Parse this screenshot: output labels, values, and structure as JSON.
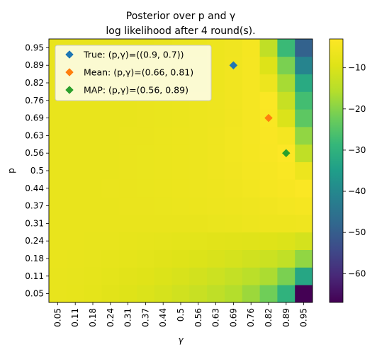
{
  "chart_data": {
    "type": "heatmap",
    "title": "Posterior over p and γ",
    "subtitle": "log likelihood after 4 round(s).",
    "xlabel": "γ",
    "ylabel": "p",
    "x_ticks": [
      "0.05",
      "0.11",
      "0.18",
      "0.24",
      "0.31",
      "0.37",
      "0.44",
      "0.5",
      "0.56",
      "0.63",
      "0.69",
      "0.76",
      "0.82",
      "0.89",
      "0.95"
    ],
    "y_ticks": [
      "0.05",
      "0.11",
      "0.18",
      "0.24",
      "0.31",
      "0.37",
      "0.44",
      "0.5",
      "0.56",
      "0.63",
      "0.69",
      "0.76",
      "0.82",
      "0.89",
      "0.95"
    ],
    "colorbar": {
      "min": -67,
      "max": -3,
      "ticks": [
        -10,
        -20,
        -30,
        -40,
        -50,
        -60
      ],
      "tick_labels": [
        "−10",
        "−20",
        "−30",
        "−40",
        "−50",
        "−60"
      ],
      "colormap": "viridis"
    },
    "z": [
      [
        -7.5,
        -7.8,
        -8.2,
        -8.8,
        -9.3,
        -10.0,
        -10.8,
        -11.7,
        -12.8,
        -14.1,
        -15.8,
        -18.0,
        -22.0,
        -30.0,
        -67.0
      ],
      [
        -7.4,
        -7.6,
        -7.9,
        -8.3,
        -8.7,
        -9.2,
        -9.8,
        -10.5,
        -11.4,
        -12.3,
        -13.4,
        -14.8,
        -16.5,
        -21.0,
        -33.0
      ],
      [
        -7.3,
        -7.4,
        -7.6,
        -7.9,
        -8.2,
        -8.5,
        -8.9,
        -9.3,
        -9.8,
        -10.3,
        -10.9,
        -11.6,
        -12.4,
        -13.8,
        -19.0
      ],
      [
        -7.2,
        -7.3,
        -7.4,
        -7.5,
        -7.7,
        -7.9,
        -8.1,
        -8.3,
        -8.5,
        -8.7,
        -8.9,
        -9.1,
        -9.4,
        -9.8,
        -11.0
      ],
      [
        -7.2,
        -7.2,
        -7.2,
        -7.3,
        -7.3,
        -7.3,
        -7.3,
        -7.3,
        -7.2,
        -7.0,
        -6.8,
        -6.5,
        -6.3,
        -6.3,
        -6.0
      ],
      [
        -7.2,
        -7.2,
        -7.2,
        -7.2,
        -7.1,
        -7.1,
        -7.0,
        -6.9,
        -6.7,
        -6.5,
        -6.2,
        -5.9,
        -5.5,
        -5.2,
        -4.8
      ],
      [
        -7.2,
        -7.2,
        -7.2,
        -7.1,
        -7.1,
        -7.0,
        -6.9,
        -6.7,
        -6.5,
        -6.2,
        -5.8,
        -5.3,
        -4.8,
        -4.3,
        -3.7
      ],
      [
        -7.2,
        -7.2,
        -7.2,
        -7.2,
        -7.1,
        -7.0,
        -6.9,
        -6.7,
        -6.4,
        -6.0,
        -5.5,
        -5.0,
        -4.4,
        -3.8,
        -6.5
      ],
      [
        -7.2,
        -7.2,
        -7.2,
        -7.2,
        -7.1,
        -7.0,
        -6.9,
        -6.7,
        -6.4,
        -6.0,
        -5.4,
        -4.8,
        -4.1,
        -3.2,
        -14.0
      ],
      [
        -7.2,
        -7.2,
        -7.2,
        -7.2,
        -7.1,
        -7.1,
        -6.9,
        -6.7,
        -6.4,
        -6.0,
        -5.4,
        -4.7,
        -3.9,
        -5.0,
        -19.0
      ],
      [
        -7.2,
        -7.2,
        -7.2,
        -7.2,
        -7.2,
        -7.1,
        -7.0,
        -6.8,
        -6.5,
        -6.1,
        -5.5,
        -4.7,
        -3.8,
        -10.0,
        -24.0
      ],
      [
        -7.2,
        -7.2,
        -7.2,
        -7.2,
        -7.2,
        -7.1,
        -7.0,
        -6.8,
        -6.5,
        -6.1,
        -5.5,
        -4.7,
        -3.7,
        -13.0,
        -27.0
      ],
      [
        -7.2,
        -7.2,
        -7.2,
        -7.2,
        -7.2,
        -7.1,
        -7.0,
        -6.8,
        -6.6,
        -6.2,
        -5.6,
        -4.7,
        -6.5,
        -17.0,
        -32.0
      ],
      [
        -7.2,
        -7.2,
        -7.2,
        -7.2,
        -7.2,
        -7.2,
        -7.1,
        -6.9,
        -6.6,
        -6.2,
        -5.6,
        -4.7,
        -9.5,
        -21.0,
        -41.0
      ],
      [
        -7.2,
        -7.2,
        -7.2,
        -7.2,
        -7.2,
        -7.2,
        -7.1,
        -6.9,
        -6.7,
        -6.3,
        -5.7,
        -4.8,
        -14.0,
        -28.0,
        -49.0
      ]
    ],
    "markers": [
      {
        "name": "True",
        "label": "True: (p,γ)=((0.9, 0.7))",
        "gamma": 0.69,
        "p": 0.89,
        "color": "#1f77b4"
      },
      {
        "name": "Mean",
        "label": "Mean: (p,γ)=(0.66, 0.81)",
        "gamma": 0.82,
        "p": 0.69,
        "color": "#ff7f0e"
      },
      {
        "name": "MAP",
        "label": "MAP: (p,γ)=(0.56, 0.89)",
        "gamma": 0.89,
        "p": 0.56,
        "color": "#2ca02c"
      }
    ],
    "legend_placement": "top-left",
    "grid": false
  }
}
